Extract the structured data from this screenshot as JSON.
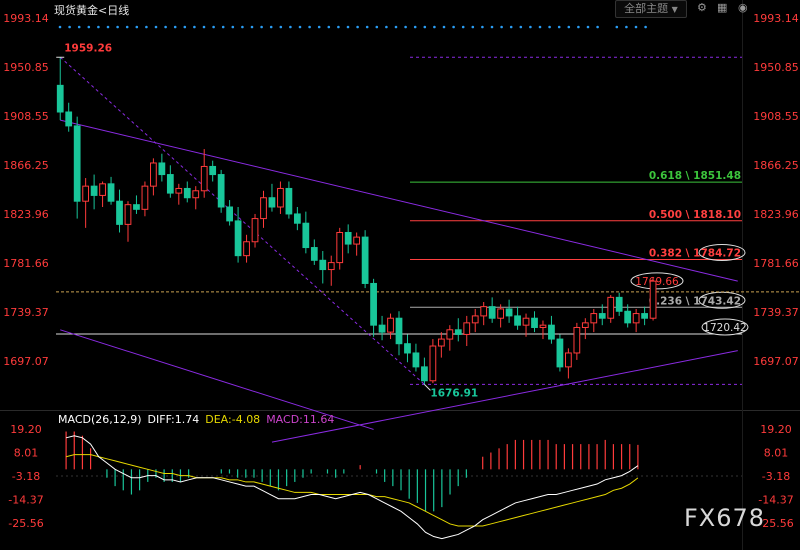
{
  "header": {
    "instrument": "现货黄金",
    "timeframe": "<日线",
    "theme_button": "全部主题",
    "theme_arrow": "▼"
  },
  "colors": {
    "up": "#ff3b3b",
    "down": "#19c69a",
    "trendline": "#8a2be2",
    "axis_text": "#ff3b3b",
    "fib_0618": "#3cc43c",
    "fib_0500": "#ff4040",
    "fib_0382": "#ff4040",
    "fib_0236": "#aaaaaa",
    "price_line": "#c8a050",
    "diff": "#ffffff",
    "dea": "#e6d800",
    "macd_label": "#cc44cc"
  },
  "chart_data": [
    {
      "type": "candlestick",
      "title": "现货黄金",
      "timeframe": "日线",
      "y_ticks": [
        "1993.14",
        "1950.85",
        "1908.55",
        "1866.25",
        "1823.96",
        "1781.66",
        "1739.37",
        "1697.07"
      ],
      "ylim": [
        1676.91,
        1993.14
      ],
      "grid": false,
      "candles": [
        {
          "o": 1935,
          "h": 1959.26,
          "l": 1905,
          "c": 1912
        },
        {
          "o": 1912,
          "h": 1920,
          "l": 1895,
          "c": 1900
        },
        {
          "o": 1900,
          "h": 1908,
          "l": 1820,
          "c": 1835
        },
        {
          "o": 1835,
          "h": 1855,
          "l": 1812,
          "c": 1848
        },
        {
          "o": 1848,
          "h": 1858,
          "l": 1828,
          "c": 1840
        },
        {
          "o": 1840,
          "h": 1852,
          "l": 1830,
          "c": 1850
        },
        {
          "o": 1850,
          "h": 1856,
          "l": 1832,
          "c": 1835
        },
        {
          "o": 1835,
          "h": 1845,
          "l": 1808,
          "c": 1815
        },
        {
          "o": 1815,
          "h": 1835,
          "l": 1800,
          "c": 1832
        },
        {
          "o": 1832,
          "h": 1840,
          "l": 1824,
          "c": 1828
        },
        {
          "o": 1828,
          "h": 1852,
          "l": 1822,
          "c": 1848
        },
        {
          "o": 1848,
          "h": 1872,
          "l": 1840,
          "c": 1868
        },
        {
          "o": 1868,
          "h": 1876,
          "l": 1852,
          "c": 1858
        },
        {
          "o": 1858,
          "h": 1866,
          "l": 1838,
          "c": 1842
        },
        {
          "o": 1842,
          "h": 1850,
          "l": 1832,
          "c": 1846
        },
        {
          "o": 1846,
          "h": 1852,
          "l": 1834,
          "c": 1838
        },
        {
          "o": 1838,
          "h": 1848,
          "l": 1828,
          "c": 1844
        },
        {
          "o": 1844,
          "h": 1880,
          "l": 1838,
          "c": 1865
        },
        {
          "o": 1865,
          "h": 1870,
          "l": 1852,
          "c": 1858
        },
        {
          "o": 1858,
          "h": 1862,
          "l": 1825,
          "c": 1830
        },
        {
          "o": 1830,
          "h": 1836,
          "l": 1814,
          "c": 1818
        },
        {
          "o": 1818,
          "h": 1830,
          "l": 1782,
          "c": 1788
        },
        {
          "o": 1788,
          "h": 1806,
          "l": 1782,
          "c": 1800
        },
        {
          "o": 1800,
          "h": 1824,
          "l": 1795,
          "c": 1820
        },
        {
          "o": 1820,
          "h": 1844,
          "l": 1812,
          "c": 1838
        },
        {
          "o": 1838,
          "h": 1850,
          "l": 1826,
          "c": 1830
        },
        {
          "o": 1830,
          "h": 1852,
          "l": 1824,
          "c": 1846
        },
        {
          "o": 1846,
          "h": 1852,
          "l": 1820,
          "c": 1824
        },
        {
          "o": 1824,
          "h": 1830,
          "l": 1810,
          "c": 1816
        },
        {
          "o": 1816,
          "h": 1826,
          "l": 1790,
          "c": 1795
        },
        {
          "o": 1795,
          "h": 1802,
          "l": 1780,
          "c": 1784
        },
        {
          "o": 1784,
          "h": 1792,
          "l": 1764,
          "c": 1776
        },
        {
          "o": 1776,
          "h": 1788,
          "l": 1762,
          "c": 1782
        },
        {
          "o": 1782,
          "h": 1812,
          "l": 1776,
          "c": 1808
        },
        {
          "o": 1808,
          "h": 1815,
          "l": 1790,
          "c": 1798
        },
        {
          "o": 1798,
          "h": 1808,
          "l": 1788,
          "c": 1804
        },
        {
          "o": 1804,
          "h": 1810,
          "l": 1760,
          "c": 1764
        },
        {
          "o": 1764,
          "h": 1768,
          "l": 1718,
          "c": 1728
        },
        {
          "o": 1728,
          "h": 1736,
          "l": 1715,
          "c": 1722
        },
        {
          "o": 1722,
          "h": 1738,
          "l": 1716,
          "c": 1734
        },
        {
          "o": 1734,
          "h": 1740,
          "l": 1702,
          "c": 1712
        },
        {
          "o": 1712,
          "h": 1720,
          "l": 1696,
          "c": 1704
        },
        {
          "o": 1704,
          "h": 1712,
          "l": 1688,
          "c": 1692
        },
        {
          "o": 1692,
          "h": 1700,
          "l": 1676.91,
          "c": 1680
        },
        {
          "o": 1680,
          "h": 1716,
          "l": 1678,
          "c": 1710
        },
        {
          "o": 1710,
          "h": 1722,
          "l": 1700,
          "c": 1716
        },
        {
          "o": 1716,
          "h": 1728,
          "l": 1706,
          "c": 1724
        },
        {
          "o": 1724,
          "h": 1734,
          "l": 1714,
          "c": 1720
        },
        {
          "o": 1720,
          "h": 1736,
          "l": 1710,
          "c": 1730
        },
        {
          "o": 1730,
          "h": 1742,
          "l": 1722,
          "c": 1736
        },
        {
          "o": 1736,
          "h": 1748,
          "l": 1728,
          "c": 1744
        },
        {
          "o": 1744,
          "h": 1752,
          "l": 1730,
          "c": 1734
        },
        {
          "o": 1734,
          "h": 1746,
          "l": 1726,
          "c": 1742
        },
        {
          "o": 1742,
          "h": 1750,
          "l": 1730,
          "c": 1736
        },
        {
          "o": 1736,
          "h": 1744,
          "l": 1724,
          "c": 1728
        },
        {
          "o": 1728,
          "h": 1738,
          "l": 1718,
          "c": 1734
        },
        {
          "o": 1734,
          "h": 1740,
          "l": 1722,
          "c": 1726
        },
        {
          "o": 1726,
          "h": 1732,
          "l": 1716,
          "c": 1728
        },
        {
          "o": 1728,
          "h": 1736,
          "l": 1712,
          "c": 1716
        },
        {
          "o": 1716,
          "h": 1720,
          "l": 1688,
          "c": 1692
        },
        {
          "o": 1692,
          "h": 1708,
          "l": 1682,
          "c": 1704
        },
        {
          "o": 1704,
          "h": 1730,
          "l": 1698,
          "c": 1726
        },
        {
          "o": 1726,
          "h": 1734,
          "l": 1716,
          "c": 1730
        },
        {
          "o": 1730,
          "h": 1742,
          "l": 1722,
          "c": 1738
        },
        {
          "o": 1738,
          "h": 1746,
          "l": 1728,
          "c": 1734
        },
        {
          "o": 1734,
          "h": 1754,
          "l": 1730,
          "c": 1752
        },
        {
          "o": 1752,
          "h": 1756,
          "l": 1736,
          "c": 1740
        },
        {
          "o": 1740,
          "h": 1746,
          "l": 1726,
          "c": 1730
        },
        {
          "o": 1730,
          "h": 1742,
          "l": 1722,
          "c": 1738
        },
        {
          "o": 1738,
          "h": 1744,
          "l": 1728,
          "c": 1734
        },
        {
          "o": 1734,
          "h": 1769.66,
          "l": 1732,
          "c": 1766
        }
      ],
      "annotations": [
        {
          "text": "1959.26",
          "value": 1959.26
        },
        {
          "text": "1676.91",
          "value": 1676.91
        }
      ],
      "fib_levels": [
        {
          "ratio": "0.618",
          "value": 1851.48,
          "label": "0.618 \\ 1851.48"
        },
        {
          "ratio": "0.500",
          "value": 1818.1,
          "label": "0.500 \\ 1818.10"
        },
        {
          "ratio": "0.382",
          "value": 1784.72,
          "label": "0.382 \\ 1784.72"
        },
        {
          "ratio": "0.236",
          "value": 1743.42,
          "label": "0.236 \\ 1743.42"
        }
      ],
      "marked_levels": [
        {
          "value": 1769.66,
          "label": "1769.66"
        },
        {
          "value": 1720.42,
          "label": "1720.42"
        }
      ],
      "fib_top": 1959.26,
      "fib_bottom": 1676.91,
      "trendlines": [
        {
          "from": {
            "bar": 0,
            "price": 1905
          },
          "to": {
            "bar": 80,
            "price": 1766
          }
        },
        {
          "from": {
            "bar": 0,
            "price": 1724
          },
          "to": {
            "bar": 37,
            "price": 1638
          }
        },
        {
          "from": {
            "bar": 25,
            "price": 1627
          },
          "to": {
            "bar": 80,
            "price": 1706
          }
        }
      ]
    },
    {
      "type": "line",
      "title": "MACD(26,12,9)",
      "y_ticks": [
        "19.20",
        "8.01",
        "-3.18",
        "-14.37",
        "-25.56"
      ],
      "ylim": [
        -36.75,
        19.2
      ],
      "legend": [
        {
          "label": "MACD(26,12,9)",
          "text": "MACD(26,12,9)"
        },
        {
          "label": "DIFF",
          "text": "DIFF:1.74"
        },
        {
          "label": "DEA",
          "text": "DEA:-4.08"
        },
        {
          "label": "MACD",
          "text": "MACD:11.64"
        }
      ],
      "series": [
        {
          "name": "DIFF",
          "values": [
            15,
            16,
            15,
            12,
            6,
            3,
            0,
            -2,
            -4,
            -4,
            -3,
            -3,
            -5,
            -5,
            -6,
            -5,
            -4,
            -4,
            -4,
            -5,
            -6,
            -7,
            -8,
            -8,
            -10,
            -12,
            -14,
            -14,
            -14,
            -13,
            -12,
            -12,
            -13,
            -14,
            -13,
            -12,
            -11,
            -12,
            -14,
            -16,
            -18,
            -20,
            -23,
            -26,
            -30,
            -32,
            -33,
            -32,
            -31,
            -29,
            -27,
            -24,
            -22,
            -20,
            -18,
            -16,
            -15,
            -14,
            -13,
            -12,
            -12,
            -11,
            -10,
            -9,
            -8,
            -7,
            -5,
            -4,
            -3,
            -1,
            1.74
          ]
        },
        {
          "name": "DEA",
          "values": [
            6,
            7,
            7,
            7,
            6,
            5,
            4,
            3,
            2,
            1,
            0,
            -1,
            -2,
            -2,
            -3,
            -3,
            -4,
            -4,
            -4,
            -4,
            -5,
            -5,
            -6,
            -6,
            -7,
            -8,
            -9,
            -10,
            -11,
            -11,
            -11,
            -12,
            -12,
            -12,
            -12,
            -12,
            -12,
            -12,
            -13,
            -13,
            -14,
            -15,
            -16,
            -18,
            -20,
            -22,
            -24,
            -26,
            -27,
            -27,
            -27,
            -27,
            -26,
            -25,
            -24,
            -23,
            -22,
            -21,
            -20,
            -19,
            -18,
            -17,
            -16,
            -15,
            -14,
            -13,
            -12,
            -10,
            -9,
            -7,
            -4.08
          ]
        },
        {
          "name": "MACD",
          "type": "bar",
          "values": [
            18,
            18,
            16,
            10,
            0,
            -4,
            -8,
            -10,
            -12,
            -10,
            -6,
            -4,
            -6,
            -6,
            -6,
            -4,
            0,
            0,
            0,
            -2,
            -2,
            -4,
            -4,
            -4,
            -6,
            -8,
            -10,
            -8,
            -6,
            -4,
            -2,
            0,
            -2,
            -4,
            -2,
            0,
            2,
            0,
            -2,
            -6,
            -8,
            -10,
            -14,
            -16,
            -20,
            -20,
            -18,
            -12,
            -8,
            -4,
            0,
            6,
            8,
            10,
            12,
            14,
            14,
            14,
            14,
            14,
            12,
            12,
            12,
            12,
            12,
            12,
            14,
            12,
            12,
            12,
            11.64
          ]
        }
      ]
    }
  ],
  "watermark": "FX678"
}
